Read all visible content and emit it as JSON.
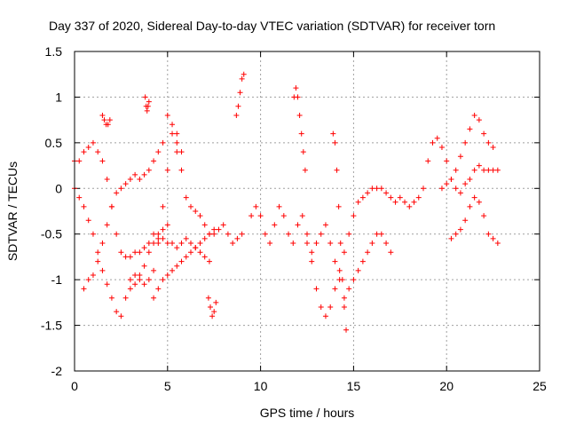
{
  "chart_data": {
    "type": "scatter",
    "title": "Day 337 of 2020, Sidereal Day-to-day VTEC variation (SDTVAR) for receiver torn",
    "xlabel": "GPS time / hours",
    "ylabel": "SDTVAR / TECUs",
    "xlim": [
      0,
      25
    ],
    "ylim": [
      -2,
      1.5
    ],
    "xticks": [
      "0",
      "5",
      "10",
      "15",
      "20",
      "25"
    ],
    "yticks": [
      "-2",
      "-1.5",
      "-1",
      "-0.5",
      "0",
      "0.5",
      "1",
      "1.5"
    ],
    "grid": true,
    "marker": "plus",
    "color": "#ff0000",
    "series": [
      {
        "x": [
          0.0,
          0.25,
          0.5,
          0.75,
          1.0,
          1.25,
          1.5,
          1.75,
          2.0,
          2.25,
          2.5,
          2.75,
          3.0,
          3.25,
          3.5,
          3.75,
          4.0,
          4.25,
          4.5,
          4.75,
          5.0,
          5.25,
          5.5,
          5.75
        ],
        "y": [
          0.0,
          -0.1,
          -0.2,
          -0.35,
          -0.5,
          -0.7,
          -0.9,
          -1.05,
          -1.2,
          -1.35,
          -1.4,
          -1.2,
          -1.0,
          -0.95,
          -1.0,
          -1.05,
          -1.0,
          -0.9,
          -0.6,
          -0.2,
          0.2,
          0.6,
          0.5,
          0.4
        ]
      },
      {
        "x": [
          0.0,
          0.25,
          0.5,
          0.75,
          1.0,
          1.25,
          1.5,
          1.75,
          2.0,
          2.25,
          2.5,
          2.75,
          3.0,
          3.25,
          3.5,
          3.75,
          4.0,
          4.25,
          4.5,
          4.75,
          5.0
        ],
        "y": [
          0.3,
          0.3,
          0.4,
          0.45,
          0.5,
          0.4,
          0.3,
          0.1,
          -0.2,
          -0.5,
          -0.7,
          -0.75,
          -0.75,
          -0.7,
          -0.7,
          -0.65,
          -0.6,
          -0.5,
          -0.5,
          -0.45,
          -0.4
        ]
      },
      {
        "x": [
          0.5,
          0.75,
          1.0,
          1.25,
          1.5,
          1.75,
          2.0,
          2.25,
          2.5,
          2.75,
          3.0,
          3.25,
          3.5,
          3.75,
          4.0,
          4.25,
          4.5,
          4.75,
          5.0,
          5.25,
          5.5
        ],
        "y": [
          -1.1,
          -1.0,
          -0.95,
          -0.8,
          -0.6,
          -0.4,
          -0.2,
          -0.05,
          0.0,
          0.05,
          0.1,
          0.15,
          0.1,
          0.15,
          0.2,
          0.3,
          0.4,
          0.5,
          0.8,
          0.7,
          0.6
        ]
      },
      {
        "x": [
          1.5,
          1.6,
          1.7,
          1.8,
          1.9
        ],
        "y": [
          0.8,
          0.75,
          0.7,
          0.7,
          0.75
        ]
      },
      {
        "x": [
          3.8,
          3.85,
          3.9,
          3.95,
          4.0
        ],
        "y": [
          1.0,
          0.9,
          0.85,
          0.9,
          0.95
        ]
      },
      {
        "x": [
          3.0,
          3.25,
          3.5,
          3.75,
          4.0,
          4.25,
          4.5,
          4.75,
          5.0,
          5.25,
          5.5,
          5.75,
          6.0,
          6.25,
          6.5,
          6.75,
          7.0,
          7.25
        ],
        "y": [
          -1.1,
          -1.05,
          -0.95,
          -0.85,
          -0.7,
          -0.6,
          -0.55,
          -0.55,
          -0.6,
          -0.6,
          -0.65,
          -0.6,
          -0.55,
          -0.6,
          -0.65,
          -0.7,
          -0.75,
          -0.8
        ]
      },
      {
        "x": [
          4.25,
          4.5,
          4.75,
          5.0,
          5.25,
          5.5,
          5.75,
          6.0,
          6.25,
          6.5,
          6.75,
          7.0,
          7.25,
          7.5
        ],
        "y": [
          -1.2,
          -1.1,
          -1.0,
          -0.95,
          -0.9,
          -0.85,
          -0.8,
          -0.75,
          -0.7,
          -0.65,
          -0.6,
          -0.55,
          -0.5,
          -0.45
        ]
      },
      {
        "x": [
          5.5,
          5.75,
          6.0,
          6.25,
          6.5,
          6.75,
          7.0,
          7.25,
          7.5,
          7.75,
          8.0,
          8.25,
          8.5,
          8.75,
          9.0
        ],
        "y": [
          0.4,
          0.2,
          -0.1,
          -0.2,
          -0.25,
          -0.3,
          -0.4,
          -0.5,
          -0.5,
          -0.45,
          -0.4,
          -0.5,
          -0.6,
          -0.55,
          -0.5
        ]
      },
      {
        "x": [
          7.2,
          7.3,
          7.4,
          7.5,
          7.6
        ],
        "y": [
          -1.2,
          -1.3,
          -1.4,
          -1.35,
          -1.25
        ]
      },
      {
        "x": [
          8.7,
          8.8,
          8.9,
          9.0,
          9.1
        ],
        "y": [
          0.8,
          0.9,
          1.05,
          1.2,
          1.25
        ]
      },
      {
        "x": [
          9.5,
          9.75,
          10.0,
          10.25,
          10.5,
          10.75,
          11.0,
          11.25,
          11.5,
          11.75,
          12.0,
          12.25,
          12.5,
          12.75,
          13.0,
          13.25
        ],
        "y": [
          -0.3,
          -0.2,
          -0.3,
          -0.5,
          -0.6,
          -0.4,
          -0.2,
          -0.3,
          -0.5,
          -0.6,
          -0.4,
          -0.3,
          -0.5,
          -0.7,
          -0.6,
          -0.5
        ]
      },
      {
        "x": [
          11.8,
          11.9,
          12.0,
          12.1,
          12.2,
          12.3,
          12.4
        ],
        "y": [
          1.0,
          1.1,
          1.0,
          0.8,
          0.6,
          0.4,
          0.2
        ]
      },
      {
        "x": [
          12.5,
          12.75,
          13.0,
          13.25,
          13.5,
          13.75,
          14.0,
          14.25,
          14.5,
          14.75,
          15.0,
          15.25,
          15.5,
          15.75,
          16.0,
          16.25,
          16.5,
          16.75,
          17.0,
          17.25
        ],
        "y": [
          -0.6,
          -0.8,
          -1.1,
          -1.3,
          -1.4,
          -1.3,
          -1.1,
          -0.9,
          -0.7,
          -0.5,
          -0.3,
          -0.15,
          -0.1,
          -0.05,
          0.0,
          0.0,
          0.0,
          -0.05,
          -0.1,
          -0.15
        ]
      },
      {
        "x": [
          13.5,
          13.75,
          14.0,
          14.25,
          14.5,
          14.75,
          15.0,
          15.25,
          15.5,
          15.75,
          16.0,
          16.25,
          16.5,
          16.75,
          17.0
        ],
        "y": [
          -0.4,
          -0.6,
          -0.8,
          -1.0,
          -1.2,
          -1.1,
          -1.0,
          -0.9,
          -0.8,
          -0.7,
          -0.6,
          -0.5,
          -0.5,
          -0.6,
          -0.7
        ]
      },
      {
        "x": [
          13.9,
          14.0,
          14.1,
          14.2,
          14.3,
          14.4,
          14.5,
          14.6
        ],
        "y": [
          0.6,
          0.5,
          0.2,
          -0.2,
          -0.6,
          -1.0,
          -1.3,
          -1.55
        ]
      },
      {
        "x": [
          17.5,
          17.75,
          18.0,
          18.25,
          18.5,
          18.75,
          19.0,
          19.25,
          19.5,
          19.75,
          20.0,
          20.25,
          20.5,
          20.75,
          21.0,
          21.25,
          21.5,
          21.75,
          22.0,
          22.25,
          22.5,
          22.75
        ],
        "y": [
          -0.1,
          -0.15,
          -0.2,
          -0.15,
          -0.1,
          0.0,
          0.3,
          0.5,
          0.55,
          0.45,
          0.3,
          0.1,
          0.0,
          -0.05,
          0.05,
          0.1,
          0.2,
          0.25,
          0.2,
          0.2,
          0.2,
          0.2
        ]
      },
      {
        "x": [
          19.75,
          20.0,
          20.25,
          20.5,
          20.75,
          21.0,
          21.25,
          21.5,
          21.75,
          22.0,
          22.25,
          22.5
        ],
        "y": [
          0.0,
          0.05,
          0.1,
          0.2,
          0.35,
          0.5,
          0.65,
          0.8,
          0.75,
          0.6,
          0.5,
          0.45
        ]
      },
      {
        "x": [
          20.25,
          20.5,
          20.75,
          21.0,
          21.25,
          21.5,
          21.75,
          22.0,
          22.25,
          22.5,
          22.75
        ],
        "y": [
          -0.55,
          -0.5,
          -0.45,
          -0.35,
          -0.2,
          -0.1,
          -0.15,
          -0.3,
          -0.5,
          -0.55,
          -0.6
        ]
      }
    ]
  }
}
